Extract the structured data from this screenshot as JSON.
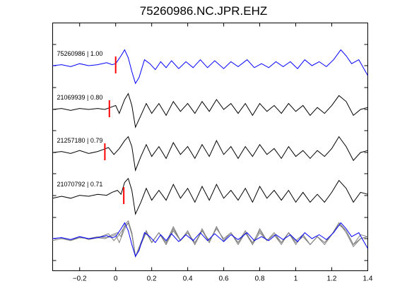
{
  "chart_data": {
    "type": "line",
    "title": "75260986.NC.JPR.EHZ",
    "xlabel": "",
    "ylabel": "",
    "xlim": [
      -0.35,
      1.4
    ],
    "xticks": [
      -0.2,
      0,
      0.2,
      0.4,
      0.6,
      0.8,
      1,
      1.2,
      1.4
    ],
    "xtick_labels": [
      "−0.2",
      "0",
      "0.2",
      "0.4",
      "0.6",
      "0.8",
      "1",
      "1.2",
      "1.4"
    ],
    "grid": false,
    "legend": "none",
    "colors": {
      "master": "#0000ff",
      "trace": "#000000",
      "overlay": "#808080",
      "pick": "#ff0000"
    },
    "traces": [
      {
        "label": "75260986 | 1.00",
        "pick_time": 0.0,
        "color": "#0000ff",
        "x": [
          -0.35,
          -0.3,
          -0.25,
          -0.2,
          -0.15,
          -0.1,
          -0.05,
          -0.02,
          0.0,
          0.03,
          0.05,
          0.07,
          0.09,
          0.11,
          0.13,
          0.16,
          0.19,
          0.22,
          0.25,
          0.28,
          0.31,
          0.35,
          0.39,
          0.43,
          0.47,
          0.51,
          0.55,
          0.6,
          0.64,
          0.68,
          0.73,
          0.77,
          0.81,
          0.85,
          0.89,
          0.93,
          0.97,
          1.01,
          1.05,
          1.09,
          1.13,
          1.17,
          1.21,
          1.25,
          1.28,
          1.31,
          1.35,
          1.4
        ],
        "y": [
          0.0,
          0.05,
          -0.05,
          0.1,
          0.0,
          0.05,
          0.15,
          0.05,
          0.1,
          0.5,
          0.8,
          0.4,
          -0.3,
          -0.9,
          -0.6,
          0.3,
          0.1,
          -0.2,
          0.2,
          -0.1,
          0.25,
          -0.15,
          0.2,
          -0.1,
          0.3,
          -0.1,
          0.25,
          -0.15,
          0.2,
          -0.05,
          0.3,
          -0.1,
          0.1,
          -0.1,
          0.2,
          -0.05,
          0.2,
          -0.15,
          0.3,
          0.0,
          0.2,
          -0.05,
          0.3,
          0.8,
          0.5,
          0.1,
          0.3,
          -0.5
        ]
      },
      {
        "label": "21069939 | 0.80",
        "pick_time": -0.035,
        "color": "#000000",
        "x": [
          -0.35,
          -0.3,
          -0.25,
          -0.2,
          -0.15,
          -0.1,
          -0.06,
          -0.03,
          0.0,
          0.02,
          0.05,
          0.07,
          0.09,
          0.11,
          0.14,
          0.17,
          0.2,
          0.24,
          0.28,
          0.32,
          0.36,
          0.4,
          0.44,
          0.48,
          0.52,
          0.56,
          0.6,
          0.64,
          0.68,
          0.72,
          0.76,
          0.8,
          0.84,
          0.88,
          0.92,
          0.96,
          1.0,
          1.04,
          1.08,
          1.12,
          1.16,
          1.2,
          1.24,
          1.28,
          1.32,
          1.36,
          1.4
        ],
        "y": [
          0.0,
          0.05,
          -0.05,
          0.05,
          0.0,
          0.05,
          0.0,
          0.1,
          0.2,
          -0.2,
          0.5,
          0.8,
          0.2,
          -0.9,
          -0.3,
          0.3,
          -0.2,
          0.3,
          -0.3,
          0.4,
          -0.1,
          0.3,
          -0.2,
          0.4,
          -0.1,
          0.5,
          0.0,
          0.3,
          -0.2,
          0.3,
          -0.3,
          0.3,
          -0.1,
          0.2,
          -0.2,
          0.3,
          -0.1,
          0.2,
          -0.3,
          0.1,
          -0.2,
          0.2,
          0.7,
          0.4,
          -0.3,
          0.0,
          0.1
        ]
      },
      {
        "label": "21257180 | 0.79",
        "pick_time": -0.06,
        "color": "#000000",
        "x": [
          -0.35,
          -0.3,
          -0.25,
          -0.2,
          -0.15,
          -0.1,
          -0.07,
          -0.04,
          -0.01,
          0.02,
          0.05,
          0.07,
          0.09,
          0.11,
          0.14,
          0.17,
          0.2,
          0.24,
          0.28,
          0.32,
          0.36,
          0.4,
          0.44,
          0.48,
          0.52,
          0.56,
          0.6,
          0.64,
          0.68,
          0.72,
          0.76,
          0.8,
          0.84,
          0.88,
          0.92,
          0.96,
          1.0,
          1.04,
          1.08,
          1.12,
          1.16,
          1.2,
          1.24,
          1.28,
          1.32,
          1.36,
          1.4
        ],
        "y": [
          0.0,
          0.05,
          -0.05,
          0.1,
          -0.05,
          0.05,
          0.15,
          0.25,
          -0.1,
          0.2,
          0.6,
          0.8,
          0.3,
          -0.9,
          -0.2,
          0.4,
          -0.2,
          0.3,
          -0.3,
          0.5,
          -0.1,
          0.3,
          -0.3,
          0.4,
          -0.2,
          0.6,
          -0.1,
          0.3,
          -0.3,
          0.3,
          -0.2,
          0.4,
          -0.1,
          0.2,
          -0.3,
          0.3,
          -0.2,
          0.1,
          -0.3,
          0.1,
          -0.2,
          0.2,
          0.8,
          0.3,
          -0.4,
          0.0,
          0.1
        ]
      },
      {
        "label": "21070792 | 0.71",
        "pick_time": 0.045,
        "color": "#000000",
        "x": [
          -0.35,
          -0.3,
          -0.25,
          -0.2,
          -0.15,
          -0.1,
          -0.05,
          -0.02,
          0.01,
          0.03,
          0.05,
          0.07,
          0.09,
          0.11,
          0.14,
          0.17,
          0.2,
          0.24,
          0.28,
          0.32,
          0.36,
          0.4,
          0.44,
          0.48,
          0.52,
          0.56,
          0.6,
          0.64,
          0.68,
          0.72,
          0.76,
          0.8,
          0.84,
          0.88,
          0.92,
          0.96,
          1.0,
          1.04,
          1.08,
          1.12,
          1.16,
          1.2,
          1.24,
          1.28,
          1.32,
          1.36,
          1.4
        ],
        "y": [
          -0.1,
          0.0,
          -0.1,
          0.05,
          0.0,
          0.1,
          0.05,
          0.2,
          0.3,
          0.1,
          0.7,
          0.9,
          0.3,
          -0.9,
          -0.3,
          0.4,
          -0.2,
          0.3,
          -0.2,
          0.6,
          -0.1,
          0.4,
          -0.3,
          0.5,
          -0.2,
          0.6,
          -0.1,
          0.3,
          -0.2,
          0.4,
          -0.3,
          0.5,
          -0.1,
          0.3,
          -0.2,
          0.3,
          -0.3,
          0.2,
          -0.3,
          0.1,
          -0.3,
          0.2,
          0.8,
          0.4,
          -0.3,
          0.2,
          0.1
        ]
      }
    ]
  }
}
